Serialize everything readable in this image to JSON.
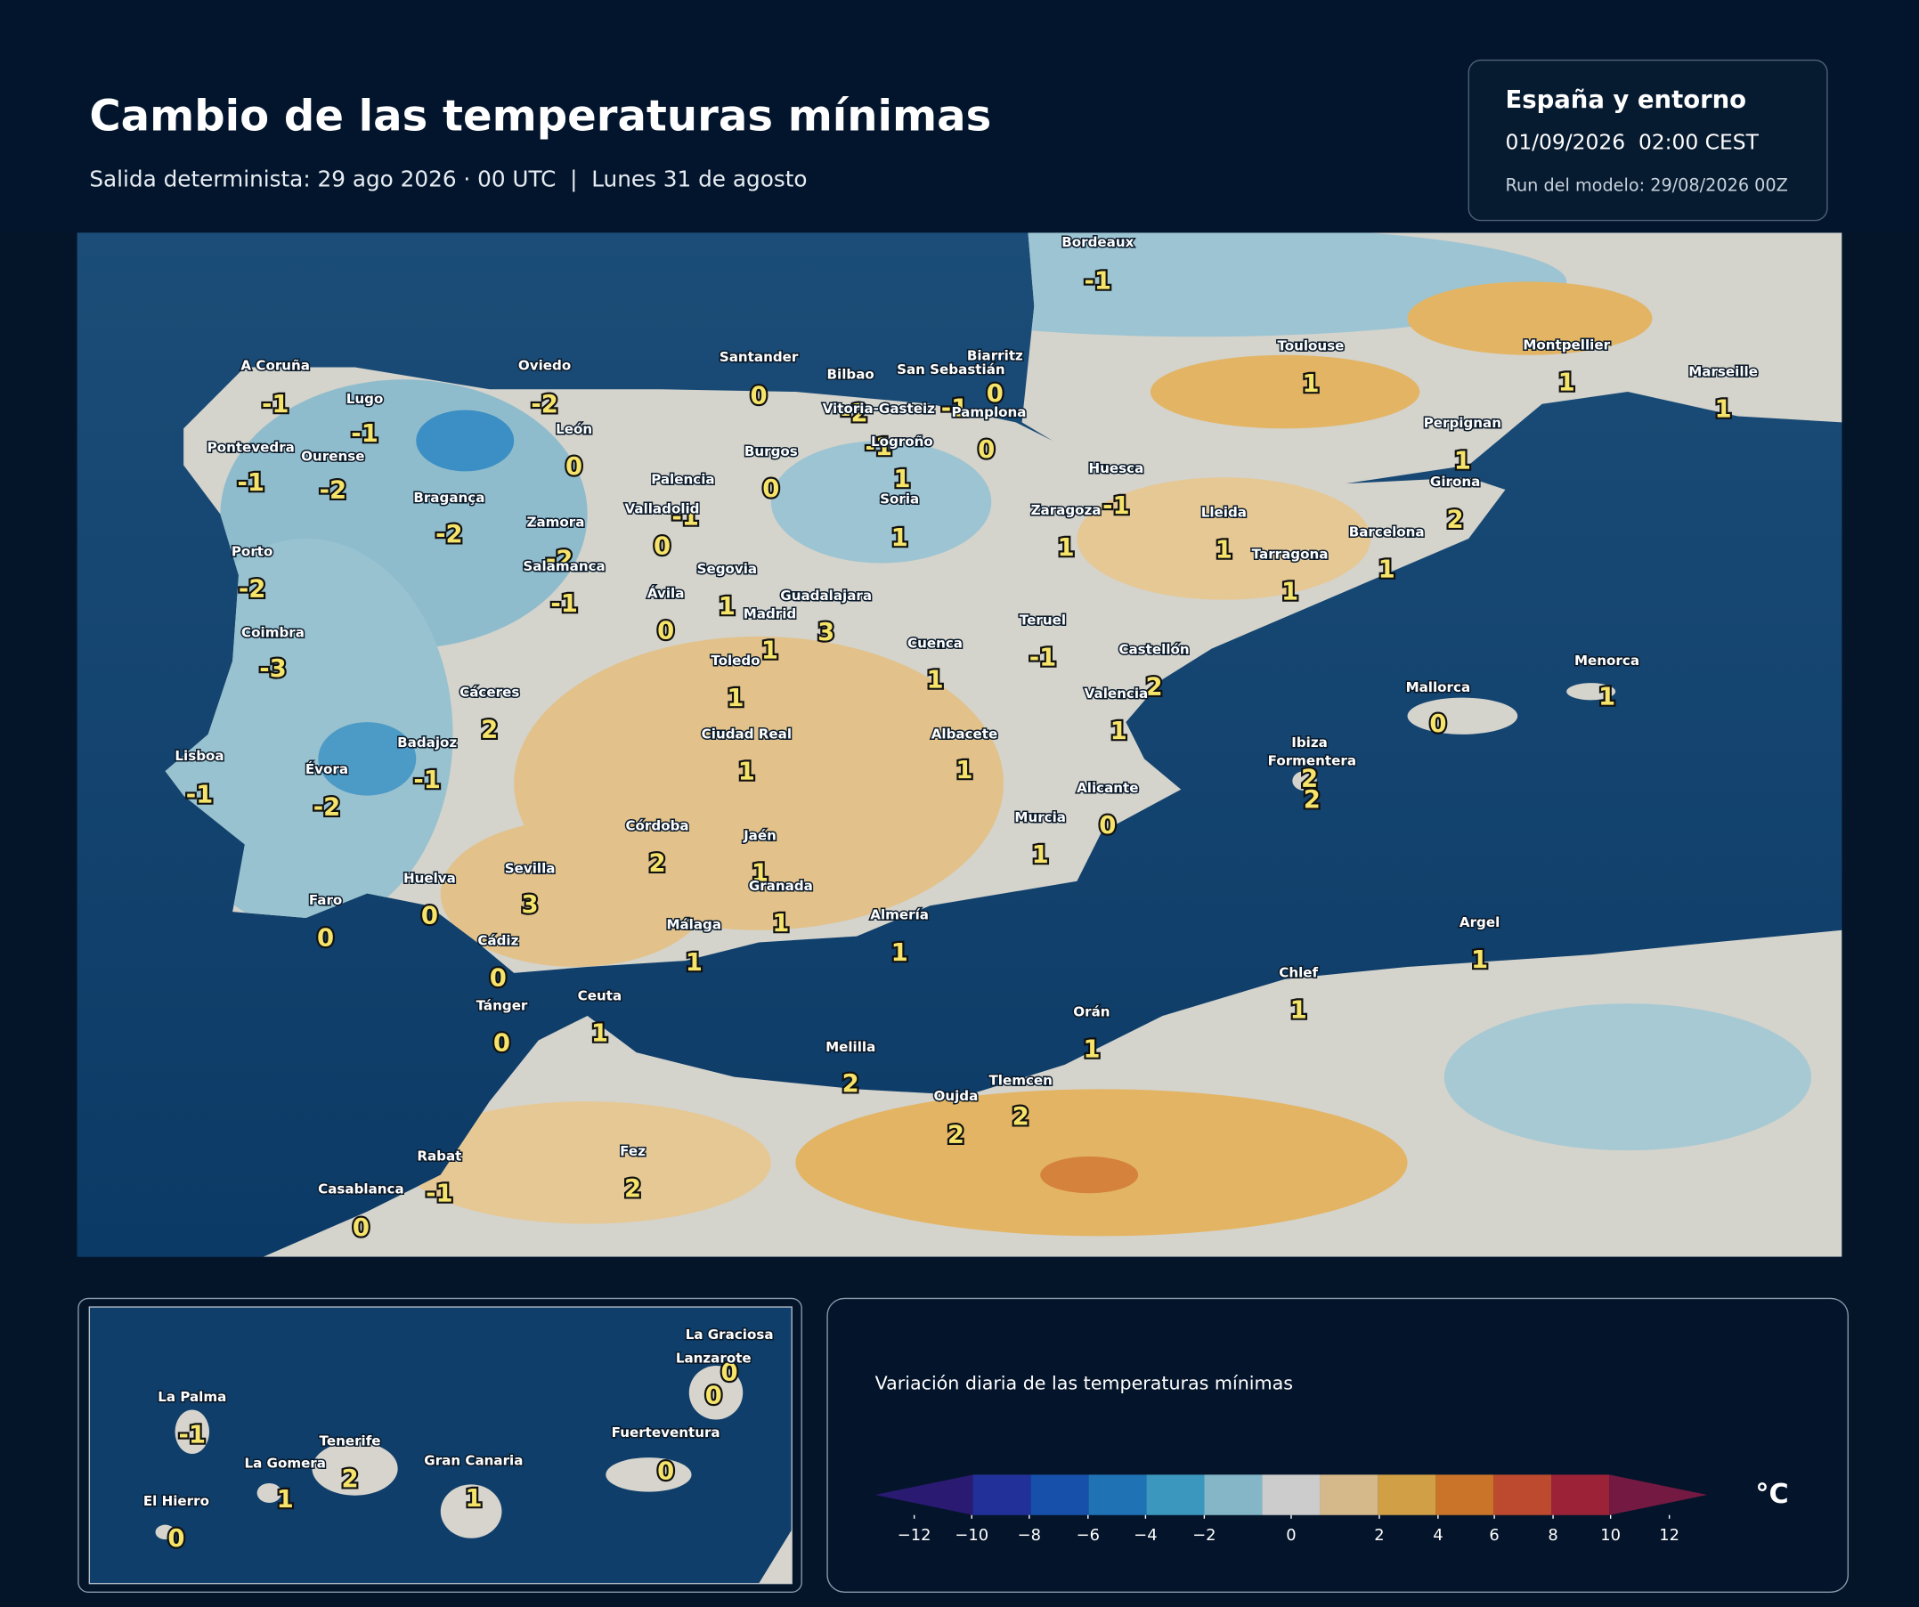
{
  "header": {
    "title": "Cambio de las temperaturas mínimas",
    "subtitle": "Salida determinista: 29 ago 2026 · 00 UTC  |  Lunes 31 de agosto"
  },
  "info": {
    "region": "España y entorno",
    "datetime": "01/09/2026  02:00 CEST",
    "run": "Run del modelo: 29/08/2026 00Z"
  },
  "map": {
    "cities": [
      {
        "name": "Bordeaux",
        "value": -1
      },
      {
        "name": "A Coruña",
        "value": -1
      },
      {
        "name": "Oviedo",
        "value": -2
      },
      {
        "name": "Santander",
        "value": 0
      },
      {
        "name": "Bilbao",
        "value": -2
      },
      {
        "name": "San Sebastián",
        "value": -1
      },
      {
        "name": "Biarritz",
        "value": 0
      },
      {
        "name": "Toulouse",
        "value": 1
      },
      {
        "name": "Montpellier",
        "value": 1
      },
      {
        "name": "Marseille",
        "value": 1
      },
      {
        "name": "Lugo",
        "value": -1
      },
      {
        "name": "León",
        "value": 0
      },
      {
        "name": "Vitoria-Gasteiz",
        "value": -1
      },
      {
        "name": "Pamplona",
        "value": 0
      },
      {
        "name": "Pontevedra",
        "value": -1
      },
      {
        "name": "Ourense",
        "value": -2
      },
      {
        "name": "Logroño",
        "value": 1
      },
      {
        "name": "Burgos",
        "value": 0
      },
      {
        "name": "Huesca",
        "value": -1
      },
      {
        "name": "Perpignan",
        "value": 1
      },
      {
        "name": "Girona",
        "value": 2
      },
      {
        "name": "Palencia",
        "value": -1
      },
      {
        "name": "Bragança",
        "value": -2
      },
      {
        "name": "Valladolid",
        "value": 0
      },
      {
        "name": "Soria",
        "value": 1
      },
      {
        "name": "Zaragoza",
        "value": 1
      },
      {
        "name": "Lleida",
        "value": 1
      },
      {
        "name": "Zamora",
        "value": -2
      },
      {
        "name": "Barcelona",
        "value": 1
      },
      {
        "name": "Porto",
        "value": -2
      },
      {
        "name": "Tarragona",
        "value": 1
      },
      {
        "name": "Salamanca",
        "value": -1
      },
      {
        "name": "Segovia",
        "value": 1
      },
      {
        "name": "Ávila",
        "value": 0
      },
      {
        "name": "Guadalajara",
        "value": 3
      },
      {
        "name": "Madrid",
        "value": 1
      },
      {
        "name": "Teruel",
        "value": -1
      },
      {
        "name": "Coimbra",
        "value": -3
      },
      {
        "name": "Cuenca",
        "value": 1
      },
      {
        "name": "Castellón",
        "value": 2
      },
      {
        "name": "Toledo",
        "value": 1
      },
      {
        "name": "Menorca",
        "value": 1
      },
      {
        "name": "Mallorca",
        "value": 0
      },
      {
        "name": "Cáceres",
        "value": 2
      },
      {
        "name": "Valencia",
        "value": 1
      },
      {
        "name": "Ciudad Real",
        "value": 1
      },
      {
        "name": "Albacete",
        "value": 1
      },
      {
        "name": "Badajoz",
        "value": -1
      },
      {
        "name": "Ibiza",
        "value": 2
      },
      {
        "name": "Formentera",
        "value": 2
      },
      {
        "name": "Lisboa",
        "value": -1
      },
      {
        "name": "Évora",
        "value": -2
      },
      {
        "name": "Alicante",
        "value": 0
      },
      {
        "name": "Murcia",
        "value": 1
      },
      {
        "name": "Córdoba",
        "value": 2
      },
      {
        "name": "Jaén",
        "value": 1
      },
      {
        "name": "Huelva",
        "value": 0
      },
      {
        "name": "Sevilla",
        "value": 3
      },
      {
        "name": "Granada",
        "value": 1
      },
      {
        "name": "Faro",
        "value": 0
      },
      {
        "name": "Málaga",
        "value": 1
      },
      {
        "name": "Almería",
        "value": 1
      },
      {
        "name": "Cádiz",
        "value": 0
      },
      {
        "name": "Argel",
        "value": 1
      },
      {
        "name": "Chlef",
        "value": 1
      },
      {
        "name": "Ceuta",
        "value": 1
      },
      {
        "name": "Tánger",
        "value": 0
      },
      {
        "name": "Orán",
        "value": 1
      },
      {
        "name": "Melilla",
        "value": 2
      },
      {
        "name": "Tlemcen",
        "value": 2
      },
      {
        "name": "Oujda",
        "value": 2
      },
      {
        "name": "Fez",
        "value": 2
      },
      {
        "name": "Rabat",
        "value": -1
      },
      {
        "name": "Casablanca",
        "value": 0
      }
    ]
  },
  "inset": {
    "islands": [
      {
        "name": "La Graciosa",
        "value": 0
      },
      {
        "name": "Lanzarote",
        "value": 0
      },
      {
        "name": "La Palma",
        "value": -1
      },
      {
        "name": "Fuerteventura",
        "value": 0
      },
      {
        "name": "Tenerife",
        "value": 2
      },
      {
        "name": "La Gomera",
        "value": 1
      },
      {
        "name": "Gran Canaria",
        "value": 1
      },
      {
        "name": "El Hierro",
        "value": 0
      }
    ]
  },
  "legend": {
    "title": "Variación diaria de las temperaturas mínimas",
    "unit": "°C",
    "colors": [
      "#2a1a72",
      "#22319a",
      "#1650aa",
      "#1f72b4",
      "#3b97be",
      "#84b6c8",
      "#cccccc",
      "#d5b98a",
      "#d19f46",
      "#c97428",
      "#bd4a2e",
      "#9c2238",
      "#741a42"
    ],
    "ticks": [
      {
        "value": -12,
        "label": "−12"
      },
      {
        "value": -10,
        "label": "−10"
      },
      {
        "value": -8,
        "label": "−8"
      },
      {
        "value": -6,
        "label": "−6"
      },
      {
        "value": -4,
        "label": "−4"
      },
      {
        "value": -2,
        "label": "−2"
      },
      0,
      2,
      4,
      6,
      8,
      10,
      12
    ]
  }
}
